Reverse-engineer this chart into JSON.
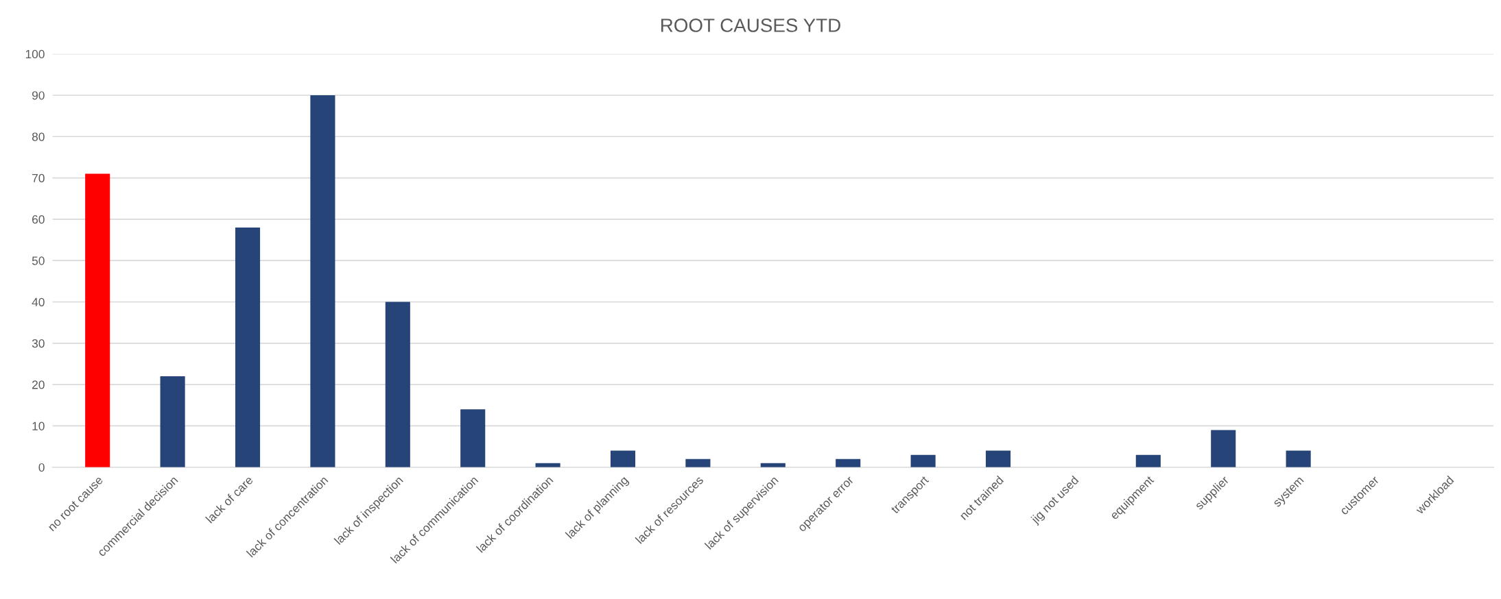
{
  "chart_data": {
    "type": "bar",
    "title": "ROOT CAUSES YTD",
    "categories": [
      "no root cause",
      "commercial decision",
      "lack of care",
      "lack of concentration",
      "lack of inspection",
      "lack of communication",
      "lack of coordination",
      "lack of planning",
      "lack of resources",
      "lack of supervision",
      "operator error",
      "transport",
      "not trained",
      "jig not used",
      "equipment",
      "supplier",
      "system",
      "customer",
      "workload"
    ],
    "values": [
      71,
      22,
      58,
      90,
      40,
      14,
      1,
      4,
      2,
      1,
      2,
      3,
      4,
      0,
      3,
      9,
      4,
      0,
      0
    ],
    "colors": [
      "#ff0000",
      "#264478",
      "#264478",
      "#264478",
      "#264478",
      "#264478",
      "#264478",
      "#264478",
      "#264478",
      "#264478",
      "#264478",
      "#264478",
      "#264478",
      "#264478",
      "#264478",
      "#264478",
      "#264478",
      "#264478",
      "#264478"
    ],
    "ylim": [
      0,
      100
    ],
    "yticks": [
      0,
      10,
      20,
      30,
      40,
      50,
      60,
      70,
      80,
      90,
      100
    ],
    "grid": "y"
  }
}
